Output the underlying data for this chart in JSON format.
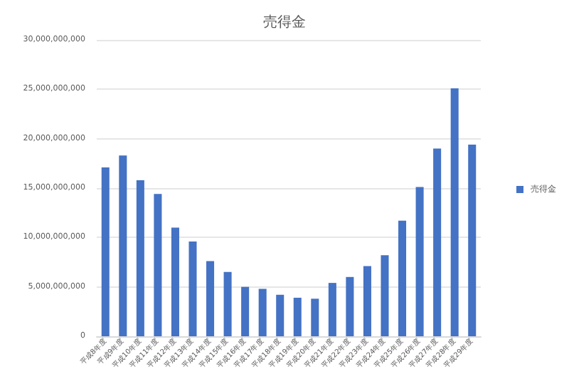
{
  "chart_data": {
    "type": "bar",
    "title": "売得金",
    "categories": [
      "平成8年度",
      "平成9年度",
      "平成10年度",
      "平成11年度",
      "平成12年度",
      "平成13年度",
      "平成14年度",
      "平成15年度",
      "平成16年度",
      "平成17年度",
      "平成18年度",
      "平成19年度",
      "平成20年度",
      "平成21年度",
      "平成22年度",
      "平成23年度",
      "平成24年度",
      "平成25年度",
      "平成26年度",
      "平成27年度",
      "平成28年度",
      "平成29年度"
    ],
    "series": [
      {
        "name": "売得金",
        "color": "#4472c4",
        "values": [
          17100000000,
          18300000000,
          15800000000,
          14400000000,
          11000000000,
          9600000000,
          7600000000,
          6500000000,
          5000000000,
          4800000000,
          4200000000,
          3900000000,
          3800000000,
          5400000000,
          6000000000,
          7100000000,
          8200000000,
          11700000000,
          15100000000,
          19000000000,
          25100000000,
          19400000000
        ]
      }
    ],
    "ylim": [
      0,
      30000000000
    ],
    "yticks": [
      0,
      {
        "value": 5000000000,
        "label": "5,000,000,000"
      },
      {
        "value": 10000000000,
        "label": "10,000,000,000"
      },
      {
        "value": 15000000000,
        "label": "15,000,000,000"
      },
      {
        "value": 20000000000,
        "label": "20,000,000,000"
      },
      {
        "value": 25000000000,
        "label": "25,000,000,000"
      },
      {
        "value": 30000000000,
        "label": "30,000,000,000"
      }
    ],
    "grid": "y",
    "legend": "right"
  }
}
